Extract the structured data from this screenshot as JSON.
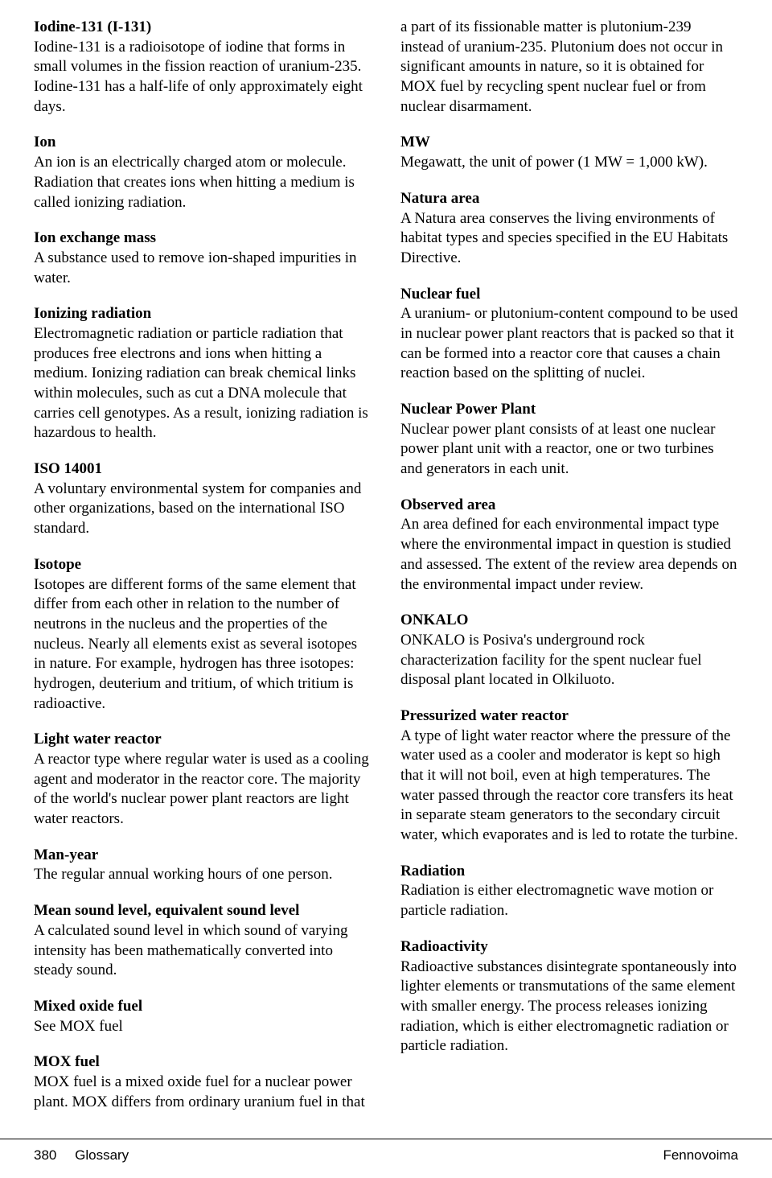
{
  "colors": {
    "text": "#000000",
    "background": "#ffffff",
    "rule": "#000000"
  },
  "typography": {
    "body_family": "Georgia, Times New Roman, serif",
    "body_size_pt": 14,
    "footer_family": "Arial, Helvetica, sans-serif",
    "footer_size_pt": 13
  },
  "entries": [
    {
      "term": "Iodine-131 (I-131)",
      "def": "Iodine-131 is a radioisotope of iodine that forms in small volumes in the fission reaction of uranium-235. Iodine-131 has a half-life of only approximately eight days."
    },
    {
      "term": "Ion",
      "def": "An ion is an electrically charged atom or molecule. Radiation that creates ions when hitting a medium is called ionizing radiation."
    },
    {
      "term": "Ion exchange mass",
      "def": "A substance used to remove ion-shaped impurities in water."
    },
    {
      "term": "Ionizing radiation",
      "def": "Electromagnetic radiation or particle radiation that produces free electrons and ions when hitting a medium. Ionizing radiation can break chemical links within molecules, such as cut a DNA molecule that carries cell genotypes. As a result, ionizing radiation is hazardous to health."
    },
    {
      "term": "ISO 14001",
      "def": "A voluntary environmental system for companies and other organizations, based on the international ISO standard."
    },
    {
      "term": "Isotope",
      "def": "Isotopes are different forms of the same element that differ from each other in relation to the number of neutrons in the nucleus and the properties of the nucleus. Nearly all elements exist as several isotopes in nature. For example, hydrogen has three isotopes: hydrogen, deuterium and tritium, of which tritium is radioactive."
    },
    {
      "term": "Light water reactor",
      "def": "A reactor type where regular water is used as a cooling agent and moderator in the reactor core. The majority of the world's nuclear power plant reactors are light water reactors."
    },
    {
      "term": "Man-year",
      "def": "The regular annual working hours of one person."
    },
    {
      "term": "Mean sound level, equivalent sound level",
      "def": "A calculated sound level in which sound of varying intensity has been mathematically converted into steady sound."
    },
    {
      "term": "Mixed oxide fuel",
      "def": "See MOX fuel"
    },
    {
      "term": "MOX fuel",
      "def": "MOX fuel is a mixed oxide fuel for a nuclear power plant. MOX differs from ordinary uranium fuel in that a part of its fissionable matter is plutonium-239 instead of uranium-235. Plutonium does not occur in significant amounts in nature, so it is obtained for MOX fuel by recycling spent nuclear fuel or from nuclear disarmament.",
      "flow": true
    },
    {
      "term": "MW",
      "def": "Megawatt, the unit of power (1 MW = 1,000 kW)."
    },
    {
      "term": "Natura area",
      "def": "A Natura area conserves the living environments of habitat types and species specified in the EU Habitats Directive."
    },
    {
      "term": "Nuclear fuel",
      "def": "A uranium- or plutonium-content compound to be used in nuclear power plant reactors that is packed so that it can be formed into a reactor core that causes a chain reaction based on the splitting of nuclei."
    },
    {
      "term": "Nuclear Power Plant",
      "def": "Nuclear power plant consists of at least one nuclear power plant unit with a reactor, one or two turbines and generators in each unit."
    },
    {
      "term": "Observed area",
      "def": "An area defined for each environmental impact type where the environmental impact in question is studied and assessed. The extent of the review area depends on the environmental impact under review."
    },
    {
      "term": "ONKALO",
      "def": "ONKALO is Posiva's underground rock characterization facility for the spent nuclear fuel disposal plant located in Olkiluoto."
    },
    {
      "term": "Pressurized water reactor",
      "def": "A type of light water reactor where the pressure of the water used as a cooler and moderator is kept so high that it will not boil, even at high temperatures. The water passed through the reactor core transfers its heat in separate steam generators to the secondary circuit water, which evaporates and is led to rotate the turbine."
    },
    {
      "term": "Radiation",
      "def": "Radiation is either electromagnetic wave motion or particle radiation."
    },
    {
      "term": "Radioactivity",
      "def": "Radioactive substances disintegrate spontaneously into lighter elements or transmutations of the same element with smaller energy. The process releases ionizing radiation, which is either electromagnetic radiation or particle radiation."
    }
  ],
  "footer": {
    "page_number": "380",
    "section": "Glossary",
    "publisher": "Fennovoima"
  }
}
